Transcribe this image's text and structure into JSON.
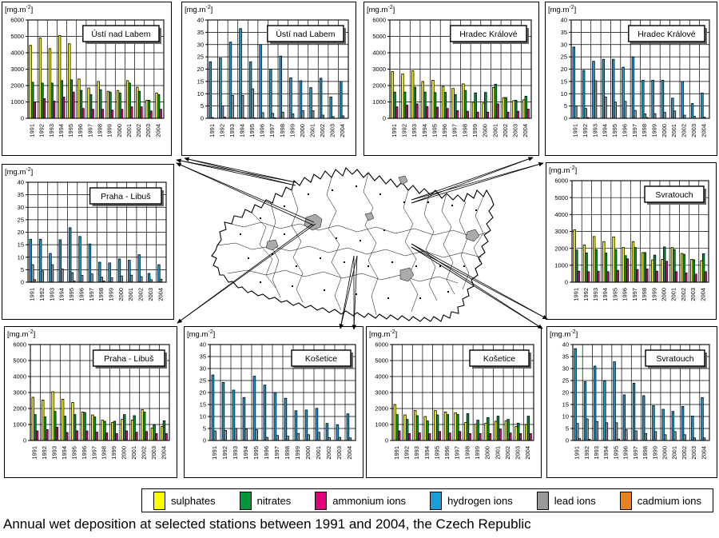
{
  "caption": "Annual wet deposition at selected stations between 1991 and 2004, the Czech Republic",
  "unit": {
    "base": "[mg.m",
    "sup": "-2",
    "close": "]"
  },
  "years": [
    "1991",
    "1992",
    "1993",
    "1994",
    "1995",
    "1996",
    "1997",
    "1998",
    "1999",
    "2000",
    "2001",
    "2002",
    "2003",
    "2004"
  ],
  "colors": {
    "sulphates": "#FFFF00",
    "nitrates": "#009639",
    "ammonium": "#E0007A",
    "hydrogen": "#1B9DD9",
    "lead": "#999999",
    "cadmium": "#E8821E"
  },
  "legend": {
    "items": [
      {
        "label": "sulphates",
        "color": "#FFFF00"
      },
      {
        "label": "nitrates",
        "color": "#009639"
      },
      {
        "label": "ammonium ions",
        "color": "#E0007A"
      },
      {
        "label": "hydrogen ions",
        "color": "#1B9DD9"
      },
      {
        "label": "lead ions",
        "color": "#999999"
      },
      {
        "label": "cadmium ions",
        "color": "#E8821E"
      }
    ]
  },
  "chart_data": [
    {
      "type": "bar",
      "station": "Ústí nad Labem",
      "ylabel": "[mg.m-2]",
      "ylim": [
        0,
        6000
      ],
      "ytick": 1000,
      "series": [
        {
          "name": "sulphates",
          "color": "sulphates",
          "values": [
            4450,
            4900,
            4250,
            5050,
            4550,
            2400,
            1850,
            2250,
            1650,
            1700,
            2300,
            1900,
            1100,
            1550
          ]
        },
        {
          "name": "nitrates",
          "color": "nitrates",
          "values": [
            2200,
            2150,
            2150,
            2300,
            2350,
            1700,
            1450,
            1750,
            1600,
            1550,
            2150,
            1650,
            1100,
            1450
          ]
        },
        {
          "name": "ammonium ions",
          "color": "ammonium",
          "values": [
            1000,
            1200,
            1050,
            1300,
            1600,
            600,
            550,
            550,
            500,
            550,
            700,
            700,
            450,
            550
          ]
        }
      ]
    },
    {
      "type": "bar",
      "station": "Ústí nad Labem",
      "ylabel": "[mg.m-2]",
      "ylim": [
        0,
        40
      ],
      "ytick": 5,
      "series": [
        {
          "name": "hydrogen ions",
          "color": "hydrogen",
          "values": [
            23,
            24.5,
            31,
            36.5,
            23,
            30,
            20,
            25.3,
            16.5,
            15.3,
            12.5,
            16.3,
            8.7,
            15
          ]
        },
        {
          "name": "lead ions",
          "color": "lead",
          "values": [
            0.3,
            5,
            9.3,
            9.3,
            12,
            2.3,
            2,
            2.5,
            1.8,
            3.1,
            3.1,
            1.3,
            0.7,
            1
          ]
        },
        {
          "name": "cadmium ions",
          "color": "cadmium",
          "values": [
            0,
            0.5,
            0.2,
            0.2,
            0.2,
            0,
            0.2,
            0,
            0,
            0,
            0,
            0,
            0,
            0
          ]
        }
      ]
    },
    {
      "type": "bar",
      "station": "Hradec Králové",
      "ylabel": "[mg.m-2]",
      "ylim": [
        0,
        6000
      ],
      "ytick": 1000,
      "series": [
        {
          "name": "sulphates",
          "color": "sulphates",
          "values": [
            2850,
            2700,
            2900,
            2250,
            2320,
            1950,
            1820,
            2100,
            980,
            930,
            1880,
            1260,
            1080,
            1130
          ]
        },
        {
          "name": "nitrates",
          "color": "nitrates",
          "values": [
            1600,
            1600,
            1900,
            1600,
            1570,
            1580,
            1450,
            1700,
            1550,
            1580,
            2080,
            1270,
            1100,
            1350
          ]
        },
        {
          "name": "ammonium ions",
          "color": "ammonium",
          "values": [
            700,
            800,
            880,
            720,
            680,
            600,
            470,
            430,
            380,
            380,
            880,
            380,
            430,
            560
          ]
        }
      ]
    },
    {
      "type": "bar",
      "station": "Hradec Králové",
      "ylabel": "[mg.m-2]",
      "ylim": [
        0,
        40
      ],
      "ytick": 5,
      "series": [
        {
          "name": "hydrogen ions",
          "color": "hydrogen",
          "values": [
            29,
            19.5,
            23.2,
            24,
            24,
            20.8,
            25,
            15.5,
            15.5,
            15.5,
            8.2,
            15,
            6,
            10.3
          ]
        },
        {
          "name": "lead ions",
          "color": "lead",
          "values": [
            5,
            4,
            15.3,
            8.7,
            6.6,
            6.9,
            3.2,
            1.8,
            1.9,
            2.4,
            3,
            1.3,
            0.8,
            0.5
          ]
        },
        {
          "name": "cadmium ions",
          "color": "cadmium",
          "values": [
            0.2,
            0.3,
            0,
            0,
            0,
            0,
            0,
            0.3,
            0,
            0,
            0,
            0,
            0,
            0
          ]
        }
      ]
    },
    {
      "type": "bar",
      "station": "Praha - Libuš",
      "ylabel": "[mg.m-2]",
      "ylim": [
        0,
        40
      ],
      "ytick": 5,
      "series": [
        {
          "name": "hydrogen ions",
          "color": "hydrogen",
          "values": [
            17.2,
            17.2,
            11.5,
            17,
            21.8,
            18.3,
            15.3,
            8,
            7.7,
            9.3,
            8.8,
            11,
            3.5,
            7
          ]
        },
        {
          "name": "lead ions",
          "color": "lead",
          "values": [
            7,
            4.5,
            7,
            5.3,
            3.8,
            2.7,
            3.3,
            2,
            1.8,
            2.5,
            2.8,
            2.2,
            1,
            1.2
          ]
        },
        {
          "name": "cadmium ions",
          "color": "cadmium",
          "values": [
            1,
            0,
            0,
            0,
            0.5,
            0,
            0,
            0.5,
            0,
            0,
            0,
            0,
            0,
            0
          ]
        }
      ]
    },
    {
      "type": "bar",
      "station": "Svratouch",
      "ylabel": "[mg.m-2]",
      "ylim": [
        0,
        6000
      ],
      "ytick": 1000,
      "series": [
        {
          "name": "sulphates",
          "color": "sulphates",
          "values": [
            3100,
            2200,
            2700,
            2400,
            2680,
            2050,
            2400,
            1750,
            1320,
            1350,
            2050,
            1700,
            1350,
            1270
          ]
        },
        {
          "name": "nitrates",
          "color": "nitrates",
          "values": [
            1900,
            1730,
            1930,
            1720,
            1930,
            1570,
            2050,
            1750,
            1600,
            2080,
            1930,
            1650,
            1320,
            1680
          ]
        },
        {
          "name": "ammonium ions",
          "color": "ammonium",
          "values": [
            650,
            620,
            650,
            620,
            700,
            1380,
            750,
            780,
            650,
            1230,
            620,
            550,
            480,
            620
          ]
        }
      ]
    },
    {
      "type": "bar",
      "station": "Praha - Libuš",
      "ylabel": "[mg.m-2]",
      "ylim": [
        0,
        6000
      ],
      "ytick": 1000,
      "series": [
        {
          "name": "sulphates",
          "color": "sulphates",
          "values": [
            2700,
            2530,
            3050,
            2580,
            2380,
            1780,
            1600,
            1270,
            1120,
            1320,
            1280,
            1920,
            780,
            880
          ]
        },
        {
          "name": "nitrates",
          "color": "nitrates",
          "values": [
            1620,
            1470,
            1820,
            1520,
            1620,
            1750,
            1470,
            1200,
            1200,
            1620,
            1550,
            1780,
            970,
            1230
          ]
        },
        {
          "name": "ammonium ions",
          "color": "ammonium",
          "values": [
            600,
            680,
            830,
            500,
            600,
            600,
            520,
            470,
            430,
            600,
            520,
            560,
            430,
            430
          ]
        }
      ]
    },
    {
      "type": "bar",
      "station": "Košetice",
      "ylabel": "[mg.m-2]",
      "ylim": [
        0,
        40
      ],
      "ytick": 5,
      "series": [
        {
          "name": "hydrogen ions",
          "color": "hydrogen",
          "values": [
            27.3,
            24.2,
            21,
            17.9,
            26.8,
            23.1,
            20,
            17.6,
            12.4,
            12.7,
            13.4,
            7.1,
            6.6,
            11.1
          ]
        },
        {
          "name": "lead ions",
          "color": "lead",
          "values": [
            4,
            4.2,
            5,
            4.8,
            4.5,
            1.3,
            2.1,
            1.8,
            2.9,
            2.4,
            3.4,
            1.2,
            1.3,
            1.1
          ]
        }
      ]
    },
    {
      "type": "bar",
      "station": "Košetice",
      "ylabel": "[mg.m-2]",
      "ylim": [
        0,
        6000
      ],
      "ytick": 1000,
      "series": [
        {
          "name": "sulphates",
          "color": "sulphates",
          "values": [
            2250,
            1600,
            1880,
            1500,
            1880,
            1780,
            1730,
            1120,
            1020,
            1080,
            1200,
            1220,
            870,
            1000
          ]
        },
        {
          "name": "nitrates",
          "color": "nitrates",
          "values": [
            1620,
            1320,
            1550,
            1230,
            1600,
            1620,
            1630,
            1680,
            1270,
            1430,
            1520,
            1320,
            1080,
            1520
          ]
        },
        {
          "name": "ammonium ions",
          "color": "ammonium",
          "values": [
            600,
            430,
            480,
            430,
            560,
            470,
            560,
            430,
            430,
            430,
            720,
            470,
            430,
            430
          ]
        }
      ]
    },
    {
      "type": "bar",
      "station": "Svratouch",
      "ylabel": "[mg.m-2]",
      "ylim": [
        0,
        40
      ],
      "ytick": 5,
      "series": [
        {
          "name": "hydrogen ions",
          "color": "hydrogen",
          "values": [
            38.3,
            24.5,
            31,
            24.8,
            32.8,
            19,
            23.9,
            18.7,
            14.5,
            13,
            12.1,
            14.2,
            10.2,
            17.9
          ]
        },
        {
          "name": "lead ions",
          "color": "lead",
          "values": [
            7.1,
            9,
            7.9,
            7.4,
            7.4,
            4.5,
            4,
            2.9,
            3.7,
            2.4,
            3.7,
            2.4,
            1.1,
            1.1
          ]
        },
        {
          "name": "cadmium ions",
          "color": "cadmium",
          "values": [
            0.8,
            0.5,
            0,
            0,
            0.6,
            0,
            0,
            0,
            0,
            0,
            0,
            0,
            0,
            0
          ]
        }
      ]
    }
  ]
}
